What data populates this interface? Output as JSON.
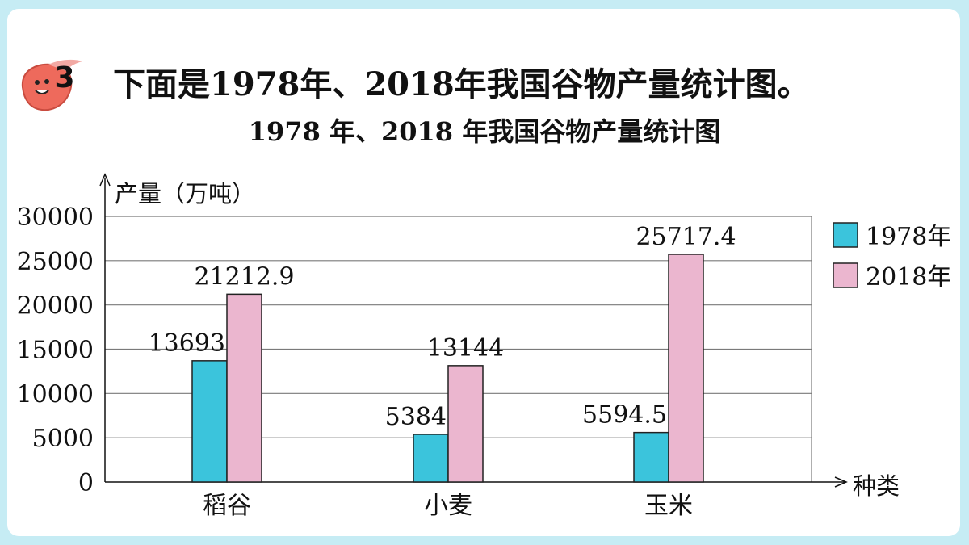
{
  "question": {
    "number": "3",
    "text": "下面是1978年、2018年我国谷物产量统计图。"
  },
  "chart_data": {
    "type": "bar",
    "title": "1978 年、2018 年我国谷物产量统计图",
    "ylabel": "产量（万吨）",
    "xlabel": "种类",
    "categories": [
      "稻谷",
      "小麦",
      "玉米"
    ],
    "series": [
      {
        "name": "1978年",
        "values": [
          13693,
          5384,
          5594.5
        ],
        "labels": [
          "13693",
          "5384",
          "5594.5"
        ],
        "color": "#3bc4dc"
      },
      {
        "name": "2018年",
        "values": [
          21212.9,
          13144,
          25717.4
        ],
        "labels": [
          "21212.9",
          "13144",
          "25717.4"
        ],
        "color": "#ebb6cf"
      }
    ],
    "yticks": [
      "0",
      "5000",
      "10000",
      "15000",
      "20000",
      "25000",
      "30000"
    ],
    "ylim": [
      0,
      30000
    ],
    "grid": true,
    "legend": "right"
  }
}
